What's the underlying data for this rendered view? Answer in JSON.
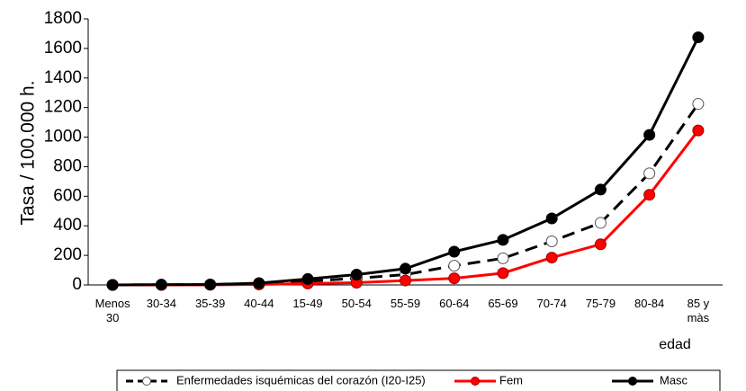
{
  "chart_data": {
    "type": "line",
    "y_label": "Tasa / 100.000 h.",
    "x_label": "edad",
    "categories": [
      "Menos 30",
      "30-34",
      "35-39",
      "40-44",
      "15-49",
      "50-54",
      "55-59",
      "60-64",
      "65-69",
      "70-74",
      "75-79",
      "80-84",
      "85 y màs"
    ],
    "series": [
      {
        "name": "Enfermedades isquémicas del corazón (I20-I25)",
        "color": "#000000",
        "values": [
          0,
          1,
          2,
          8,
          25,
          45,
          70,
          130,
          180,
          295,
          420,
          755,
          1225
        ]
      },
      {
        "name": "Fem",
        "color": "#ff0000",
        "values": [
          0,
          0,
          1,
          3,
          10,
          15,
          30,
          45,
          80,
          185,
          275,
          610,
          1045
        ]
      },
      {
        "name": "Masc",
        "color": "#000000",
        "values": [
          0,
          2,
          3,
          12,
          40,
          70,
          110,
          225,
          305,
          450,
          645,
          1015,
          1675
        ]
      }
    ],
    "ylim": [
      0,
      1800
    ],
    "yticks": [
      0,
      200,
      400,
      600,
      800,
      1000,
      1200,
      1400,
      1600,
      1800
    ]
  }
}
